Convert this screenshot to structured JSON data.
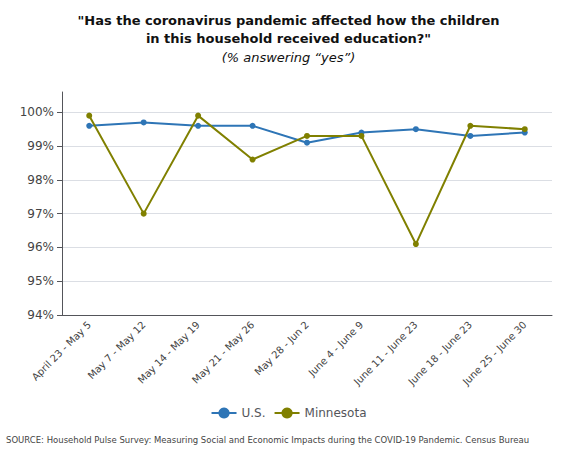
{
  "chart_data": {
    "type": "line",
    "title": "\"Has the coronavirus pandemic affected how the children\nin this household received education?\"",
    "subtitle": "(% answering “yes”)",
    "categories": [
      "April 23 - May 5",
      "May 7 - May 12",
      "May 14 - May 19",
      "May 21 - May 26",
      "May 28 - Jun 2",
      "June 4 - June 9",
      "June 11 - June 23",
      "June 18 - June 23",
      "June 25 - June 30"
    ],
    "series": [
      {
        "name": "U.S.",
        "color": "#2E75B6",
        "marker": "circle",
        "values": [
          99.6,
          99.7,
          99.6,
          99.6,
          99.1,
          99.4,
          99.5,
          99.3,
          99.4
        ]
      },
      {
        "name": "Minnesota",
        "color": "#808000",
        "marker": "circle",
        "values": [
          99.9,
          97.0,
          99.9,
          98.6,
          99.3,
          99.3,
          96.1,
          99.6,
          99.5
        ]
      }
    ],
    "ylim": [
      94,
      100.6
    ],
    "yticks": [
      {
        "value": 94,
        "label": "94%"
      },
      {
        "value": 95,
        "label": "95%"
      },
      {
        "value": 96,
        "label": "96%"
      },
      {
        "value": 97,
        "label": "97%"
      },
      {
        "value": 98,
        "label": "98%"
      },
      {
        "value": 99,
        "label": "99%"
      },
      {
        "value": 100,
        "label": "100%"
      }
    ],
    "grid": true,
    "legend": "bottom",
    "source": "SOURCE: Household Pulse Survey: Measuring Social and Economic Impacts during the COVID-19 Pandemic. Census Bureau"
  }
}
